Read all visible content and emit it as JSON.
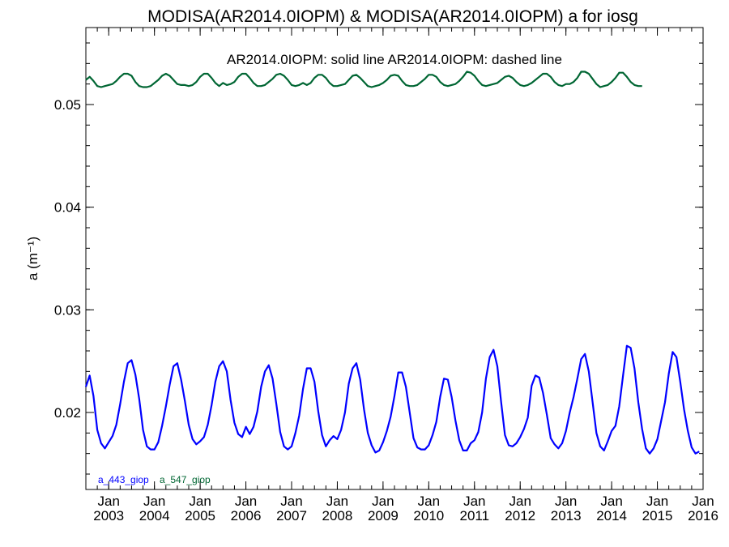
{
  "chart_data": {
    "type": "line",
    "title": "MODISA(AR2014.0IOPM) & MODISA(AR2014.0IOPM)  a for iosg",
    "subtitle": "AR2014.0IOPM: solid line   AR2014.0IOPM: dashed line",
    "ylabel": "a (m⁻¹)",
    "xlabel": "",
    "ylim": [
      0.0125,
      0.0575
    ],
    "xlim": [
      "2002-07",
      "2016-01"
    ],
    "y_ticks": [
      0.02,
      0.03,
      0.04,
      0.05
    ],
    "y_tick_labels": [
      "0.02",
      "0.03",
      "0.04",
      "0.05"
    ],
    "x_ticks": [
      "2003-01",
      "2004-01",
      "2005-01",
      "2006-01",
      "2007-01",
      "2008-01",
      "2009-01",
      "2010-01",
      "2011-01",
      "2012-01",
      "2013-01",
      "2014-01",
      "2015-01",
      "2016-01"
    ],
    "x_tick_month_label": "Jan",
    "x_tick_year_labels": [
      "2003",
      "2004",
      "2005",
      "2006",
      "2007",
      "2008",
      "2009",
      "2010",
      "2011",
      "2012",
      "2013",
      "2014",
      "2015",
      "2016"
    ],
    "grid": false,
    "legend_position": "bottom-left",
    "series": [
      {
        "name": "a_443_giop",
        "color": "#0000ff",
        "style": "solid",
        "x_start": "2002-07",
        "x_step": "1 month",
        "values": [
          0.0225,
          0.0236,
          0.0216,
          0.0183,
          0.017,
          0.0165,
          0.0171,
          0.0177,
          0.0188,
          0.0208,
          0.023,
          0.0248,
          0.0251,
          0.0237,
          0.0213,
          0.0183,
          0.0167,
          0.0164,
          0.0164,
          0.0171,
          0.0187,
          0.0206,
          0.0227,
          0.0245,
          0.0248,
          0.0232,
          0.0211,
          0.0188,
          0.0174,
          0.0169,
          0.0172,
          0.0176,
          0.0188,
          0.0207,
          0.023,
          0.0245,
          0.025,
          0.024,
          0.0212,
          0.019,
          0.0179,
          0.0176,
          0.0186,
          0.0179,
          0.0186,
          0.0201,
          0.0225,
          0.024,
          0.0246,
          0.0233,
          0.0208,
          0.0181,
          0.0167,
          0.0164,
          0.0167,
          0.018,
          0.0197,
          0.0223,
          0.0243,
          0.0243,
          0.023,
          0.0201,
          0.0178,
          0.0167,
          0.0173,
          0.0177,
          0.0174,
          0.0183,
          0.02,
          0.0228,
          0.0243,
          0.0248,
          0.0232,
          0.0203,
          0.018,
          0.0168,
          0.0161,
          0.0163,
          0.0171,
          0.0182,
          0.0196,
          0.0216,
          0.0239,
          0.0239,
          0.0225,
          0.02,
          0.0175,
          0.0166,
          0.0164,
          0.0164,
          0.0168,
          0.0178,
          0.0191,
          0.0215,
          0.0233,
          0.0232,
          0.0215,
          0.0192,
          0.0173,
          0.0163,
          0.0163,
          0.017,
          0.0173,
          0.0181,
          0.02,
          0.0233,
          0.0254,
          0.0261,
          0.0245,
          0.021,
          0.0178,
          0.0168,
          0.0167,
          0.017,
          0.0176,
          0.0184,
          0.0195,
          0.0226,
          0.0236,
          0.0234,
          0.0219,
          0.0198,
          0.0175,
          0.0169,
          0.0165,
          0.017,
          0.0182,
          0.02,
          0.0215,
          0.0233,
          0.0252,
          0.0257,
          0.024,
          0.021,
          0.018,
          0.0167,
          0.0163,
          0.0172,
          0.0182,
          0.0187,
          0.0206,
          0.0236,
          0.0265,
          0.0263,
          0.0243,
          0.021,
          0.0184,
          0.0165,
          0.016,
          0.0165,
          0.0174,
          0.0192,
          0.021,
          0.0238,
          0.0259,
          0.0254,
          0.023,
          0.0203,
          0.0182,
          0.0166,
          0.016,
          0.0162
        ]
      },
      {
        "name": "a_547_giop",
        "color": "#006633",
        "style": "solid",
        "x_start": "2002-07",
        "x_step": "1 month",
        "values": [
          0.0524,
          0.0527,
          0.0523,
          0.0518,
          0.0517,
          0.0518,
          0.0519,
          0.052,
          0.0523,
          0.0527,
          0.053,
          0.053,
          0.0528,
          0.0522,
          0.0518,
          0.0517,
          0.0517,
          0.0518,
          0.0521,
          0.0524,
          0.0528,
          0.053,
          0.0528,
          0.0524,
          0.052,
          0.0519,
          0.0519,
          0.0518,
          0.0519,
          0.0522,
          0.0527,
          0.053,
          0.053,
          0.0526,
          0.0521,
          0.0518,
          0.0521,
          0.0519,
          0.052,
          0.0522,
          0.0527,
          0.053,
          0.053,
          0.0526,
          0.0521,
          0.0518,
          0.0518,
          0.0519,
          0.0522,
          0.0525,
          0.0529,
          0.053,
          0.0528,
          0.0524,
          0.0519,
          0.0518,
          0.0519,
          0.0521,
          0.0519,
          0.0521,
          0.0526,
          0.0529,
          0.0529,
          0.0526,
          0.0521,
          0.0518,
          0.0518,
          0.0519,
          0.052,
          0.0524,
          0.0528,
          0.0529,
          0.0526,
          0.0522,
          0.0518,
          0.0517,
          0.0518,
          0.0519,
          0.0521,
          0.0524,
          0.0528,
          0.0529,
          0.0528,
          0.0523,
          0.0519,
          0.0518,
          0.0518,
          0.0519,
          0.0522,
          0.0525,
          0.0529,
          0.0529,
          0.0527,
          0.0522,
          0.0519,
          0.0518,
          0.0519,
          0.052,
          0.0523,
          0.0527,
          0.0532,
          0.0531,
          0.0528,
          0.0523,
          0.0519,
          0.0518,
          0.0519,
          0.052,
          0.0521,
          0.0524,
          0.0527,
          0.0528,
          0.0526,
          0.0522,
          0.0519,
          0.0518,
          0.0519,
          0.0521,
          0.0524,
          0.0527,
          0.053,
          0.053,
          0.0527,
          0.0522,
          0.0519,
          0.0518,
          0.052,
          0.052,
          0.0522,
          0.0526,
          0.0532,
          0.0532,
          0.053,
          0.0525,
          0.052,
          0.0517,
          0.0518,
          0.0519,
          0.0522,
          0.0526,
          0.0531,
          0.0531,
          0.0527,
          0.0522,
          0.0519,
          0.0518,
          0.0518
        ]
      }
    ]
  }
}
